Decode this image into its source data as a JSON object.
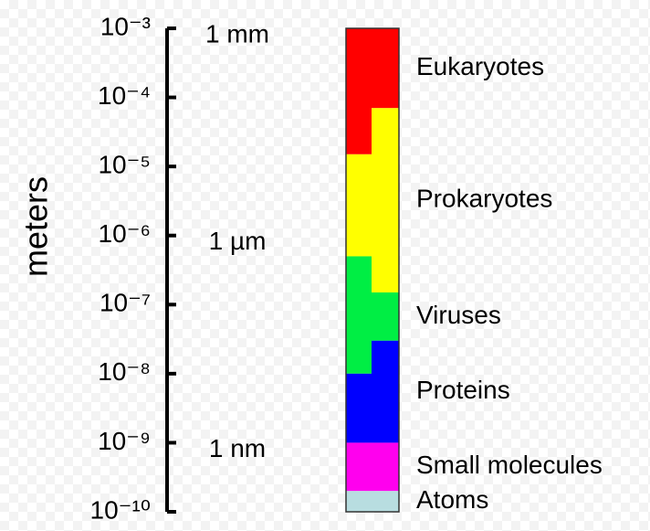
{
  "chart_data": {
    "type": "range",
    "log_scale": true,
    "y_label": "meters",
    "ylim": [
      1e-10,
      0.001
    ],
    "yticks": [
      {
        "value": 0.001,
        "label": "10⁻³"
      },
      {
        "value": 0.0001,
        "label": "10⁻⁴"
      },
      {
        "value": 1e-05,
        "label": "10⁻⁵"
      },
      {
        "value": 1e-06,
        "label": "10⁻⁶"
      },
      {
        "value": 1e-07,
        "label": "10⁻⁷"
      },
      {
        "value": 1e-08,
        "label": "10⁻⁸"
      },
      {
        "value": 1e-09,
        "label": "10⁻⁹"
      },
      {
        "value": 1e-10,
        "label": "10⁻¹⁰"
      }
    ],
    "annotations": [
      {
        "value": 0.001,
        "text": "1 mm"
      },
      {
        "value": 1e-06,
        "text": "1 µm"
      },
      {
        "value": 1e-09,
        "text": "1 nm"
      }
    ],
    "categories": [
      "Eukaryotes",
      "Prokaryotes",
      "Viruses",
      "Proteins",
      "Small molecules",
      "Atoms"
    ],
    "colors": [
      "#ff0000",
      "#ffff00",
      "#00ee44",
      "#0000ff",
      "#ff00ee",
      "#b8dde0"
    ],
    "left": {
      "low": [
        1.5e-05,
        5e-07,
        1e-08,
        1e-09,
        2e-10,
        1e-10
      ],
      "high": [
        0.001,
        1.5e-05,
        5e-07,
        1e-08,
        1e-09,
        2e-10
      ]
    },
    "right": {
      "low": [
        7e-05,
        1.5e-07,
        3e-08,
        1e-09,
        2e-10,
        1e-10
      ],
      "high": [
        0.001,
        7e-05,
        1.5e-07,
        3e-08,
        1e-09,
        2e-10
      ]
    }
  }
}
